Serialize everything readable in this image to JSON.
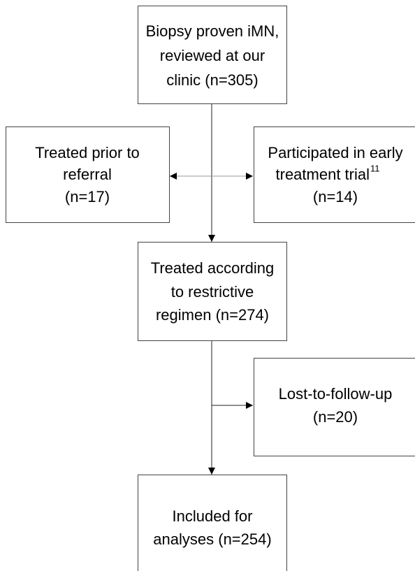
{
  "nodes": [
    {
      "lines": [
        "Biopsy proven iMN,",
        "reviewed at our",
        "clinic (n=305)"
      ]
    },
    {
      "lines": [
        "Treated prior to",
        "referral",
        "(n=17)"
      ]
    },
    {
      "lines": [
        "Participated in early",
        "treatment trial",
        "(n=14)"
      ],
      "superscript": "11"
    },
    {
      "lines": [
        "Treated according",
        "to restrictive",
        "regimen (n=274)"
      ]
    },
    {
      "lines": [
        "Lost-to-follow-up",
        "(n=20)"
      ]
    },
    {
      "lines": [
        "Included for",
        "analyses (n=254)"
      ]
    }
  ]
}
